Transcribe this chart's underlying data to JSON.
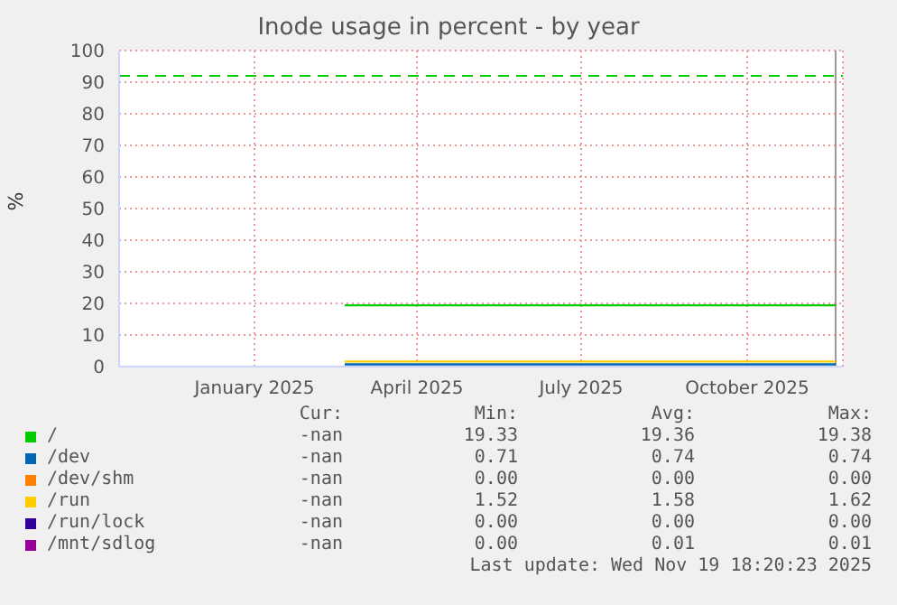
{
  "chart_data": {
    "type": "line",
    "title": "Inode usage in percent - by year",
    "ylabel": "%",
    "x": [
      "2025-02-20",
      "2025-04-01",
      "2025-06-01",
      "2025-08-01",
      "2025-10-01",
      "2025-11-19"
    ],
    "xlim": [
      "2024-10-18",
      "2025-11-23"
    ],
    "xticks": [
      {
        "value": "2025-01-01",
        "label": "January 2025"
      },
      {
        "value": "2025-04-01",
        "label": "April 2025"
      },
      {
        "value": "2025-07-01",
        "label": "July 2025"
      },
      {
        "value": "2025-10-01",
        "label": "October 2025"
      }
    ],
    "ylim": [
      0,
      100
    ],
    "yticks": [
      0,
      10,
      20,
      30,
      40,
      50,
      60,
      70,
      80,
      90,
      100
    ],
    "grid": true,
    "legend": "bottom",
    "marker": "none",
    "line_style": "solid",
    "series": [
      {
        "name": "/",
        "color": "#00cc00",
        "values": [
          19.4,
          19.4,
          19.4,
          19.4,
          19.4,
          19.4
        ]
      },
      {
        "name": "/dev",
        "color": "#0066b3",
        "values": [
          0.7,
          0.7,
          0.7,
          0.7,
          0.7,
          0.7
        ]
      },
      {
        "name": "/dev/shm",
        "color": "#ff8000",
        "values": [
          null,
          null,
          null,
          null,
          null,
          null
        ]
      },
      {
        "name": "/run",
        "color": "#ffcc00",
        "values": [
          1.6,
          1.6,
          1.6,
          1.6,
          1.6,
          1.6
        ]
      },
      {
        "name": "/run/lock",
        "color": "#330099",
        "values": [
          null,
          null,
          null,
          null,
          null,
          null
        ]
      },
      {
        "name": "/mnt/sdlog",
        "color": "#990099",
        "values": [
          null,
          null,
          null,
          null,
          null,
          null
        ]
      }
    ],
    "ref_lines": [
      {
        "axis": "y",
        "value": 92,
        "color": "#00cc00",
        "line_style": "dashed"
      },
      {
        "axis": "x",
        "value": "2025-11-19",
        "color": "#999999",
        "line_style": "solid"
      }
    ],
    "annotations": [
      "Cur:",
      "Min:",
      "Avg:",
      "Max:",
      "-nan",
      "19.33",
      "19.36",
      "19.38",
      "-nan",
      "0.71",
      "0.74",
      "0.74",
      "-nan",
      "0.00",
      "0.00",
      "0.00",
      "-nan",
      "1.52",
      "1.58",
      "1.62",
      "-nan",
      "0.00",
      "0.00",
      "0.00",
      "-nan",
      "0.00",
      "0.01",
      "0.01",
      "Last update: Wed Nov 19 18:20:23 2025"
    ]
  }
}
